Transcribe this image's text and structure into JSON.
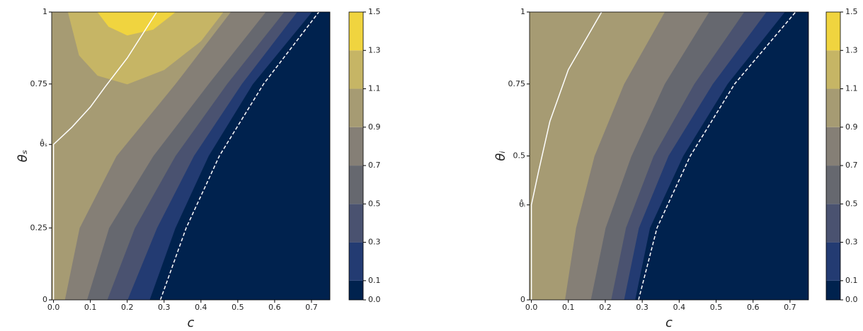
{
  "chart_data": [
    {
      "type": "contour",
      "xlabel": "c",
      "ylabel": "θₛ",
      "xlim": [
        -0.005,
        0.75
      ],
      "ylim": [
        0,
        1
      ],
      "xticks": [
        {
          "value": 0,
          "label": "0.0"
        },
        0.1,
        0.2,
        0.3,
        0.4,
        0.5,
        0.6,
        0.7
      ],
      "yticks": [
        0,
        0.25,
        {
          "value": 0.54,
          "label": "θ̂ₛ"
        },
        0.75,
        1
      ],
      "levels": [
        {
          "value": 0,
          "label": "0.0"
        },
        0.1,
        0.3,
        0.5,
        0.7,
        0.9,
        1.1,
        1.3,
        1.5
      ],
      "colors": [
        "#00224e",
        "#233b72",
        "#4a5270",
        "#66686f",
        "#857f76",
        "#a69b73",
        "#c6b565",
        "#f0d43f"
      ],
      "contours": [
        {
          "level": 0.1,
          "x": [
            0.26,
            0.33,
            0.42,
            0.54,
            0.7
          ],
          "y": [
            0,
            0.25,
            0.5,
            0.75,
            1
          ]
        },
        {
          "level": 0.3,
          "x": [
            0.2,
            0.28,
            0.38,
            0.51,
            0.66
          ],
          "y": [
            0,
            0.25,
            0.5,
            0.75,
            1
          ]
        },
        {
          "level": 0.5,
          "x": [
            0.145,
            0.22,
            0.33,
            0.47,
            0.625
          ],
          "y": [
            0,
            0.25,
            0.5,
            0.75,
            1
          ]
        },
        {
          "level": 0.7,
          "x": [
            0.09,
            0.15,
            0.27,
            0.42,
            0.575
          ],
          "y": [
            0,
            0.25,
            0.5,
            0.75,
            1
          ]
        },
        {
          "level": 0.9,
          "x": [
            0.03,
            0.07,
            0.17,
            0.33,
            0.48
          ],
          "y": [
            0,
            0.25,
            0.5,
            0.75,
            1
          ]
        },
        {
          "level": 1.1,
          "x": [
            0.04,
            0.07,
            0.12,
            0.2,
            0.3,
            0.4,
            0.46
          ],
          "y": [
            1,
            0.85,
            0.78,
            0.75,
            0.8,
            0.9,
            1
          ]
        },
        {
          "level": 1.3,
          "x": [
            0.12,
            0.15,
            0.2,
            0.27,
            0.33
          ],
          "y": [
            1,
            0.95,
            0.92,
            0.94,
            1
          ]
        }
      ],
      "lines": [
        {
          "style": "solid",
          "color": "#ffffff",
          "x": [
            0,
            0,
            0.05,
            0.1,
            0.14,
            0.2,
            0.28
          ],
          "y": [
            0,
            0.54,
            0.6,
            0.67,
            0.74,
            0.84,
            1
          ]
        },
        {
          "style": "dashed",
          "color": "#ffffff",
          "x": [
            0.29,
            0.36,
            0.45,
            0.57,
            0.72
          ],
          "y": [
            0,
            0.25,
            0.5,
            0.75,
            1
          ]
        }
      ]
    },
    {
      "type": "contour",
      "xlabel": "c",
      "ylabel": "θᵢ",
      "xlim": [
        -0.005,
        0.75
      ],
      "ylim": [
        0,
        1
      ],
      "xticks": [
        {
          "value": 0,
          "label": "0.0"
        },
        0.1,
        0.2,
        0.3,
        0.4,
        0.5,
        0.6,
        0.7
      ],
      "yticks": [
        0,
        {
          "value": 0.33,
          "label": "θ̂ᵢ"
        },
        0.5,
        0.75,
        1
      ],
      "levels": [
        {
          "value": 0,
          "label": "0.0"
        },
        0.1,
        0.3,
        0.5,
        0.7,
        0.9,
        1.1,
        1.3,
        1.5
      ],
      "colors": [
        "#00224e",
        "#233b72",
        "#4a5270",
        "#66686f",
        "#857f76",
        "#a69b73",
        "#c6b565",
        "#f0d43f"
      ],
      "contours": [
        {
          "level": 0.1,
          "x": [
            0.28,
            0.32,
            0.41,
            0.53,
            0.685
          ],
          "y": [
            0,
            0.25,
            0.5,
            0.75,
            1
          ]
        },
        {
          "level": 0.3,
          "x": [
            0.25,
            0.29,
            0.37,
            0.49,
            0.635
          ],
          "y": [
            0,
            0.25,
            0.5,
            0.75,
            1
          ]
        },
        {
          "level": 0.5,
          "x": [
            0.215,
            0.255,
            0.33,
            0.44,
            0.575
          ],
          "y": [
            0,
            0.25,
            0.5,
            0.75,
            1
          ]
        },
        {
          "level": 0.7,
          "x": [
            0.16,
            0.2,
            0.27,
            0.36,
            0.48
          ],
          "y": [
            0,
            0.25,
            0.5,
            0.75,
            1
          ]
        },
        {
          "level": 0.9,
          "x": [
            0.09,
            0.12,
            0.17,
            0.25,
            0.36
          ],
          "y": [
            0,
            0.25,
            0.5,
            0.75,
            1
          ]
        }
      ],
      "lines": [
        {
          "style": "solid",
          "color": "#ffffff",
          "x": [
            0,
            0,
            0.02,
            0.05,
            0.1,
            0.19
          ],
          "y": [
            0,
            0.33,
            0.45,
            0.62,
            0.8,
            1
          ]
        },
        {
          "style": "dashed",
          "color": "#ffffff",
          "x": [
            0.29,
            0.34,
            0.43,
            0.55,
            0.715
          ],
          "y": [
            0,
            0.25,
            0.5,
            0.75,
            1
          ]
        }
      ]
    }
  ]
}
